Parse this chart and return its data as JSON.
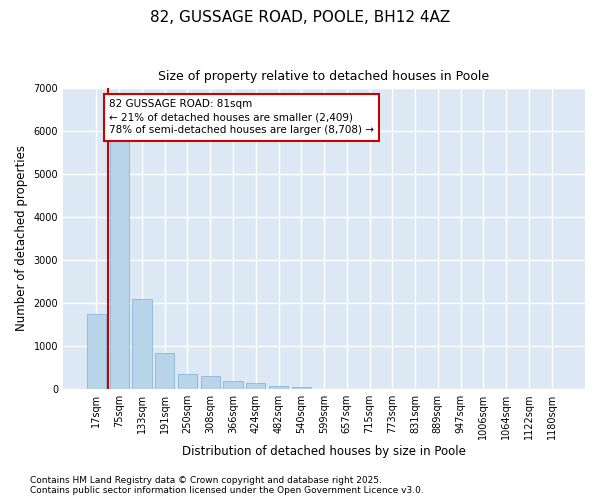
{
  "title1": "82, GUSSAGE ROAD, POOLE, BH12 4AZ",
  "title2": "Size of property relative to detached houses in Poole",
  "xlabel": "Distribution of detached houses by size in Poole",
  "ylabel": "Number of detached properties",
  "categories": [
    "17sqm",
    "75sqm",
    "133sqm",
    "191sqm",
    "250sqm",
    "308sqm",
    "366sqm",
    "424sqm",
    "482sqm",
    "540sqm",
    "599sqm",
    "657sqm",
    "715sqm",
    "773sqm",
    "831sqm",
    "889sqm",
    "947sqm",
    "1006sqm",
    "1064sqm",
    "1122sqm",
    "1180sqm"
  ],
  "values": [
    1750,
    5950,
    2100,
    830,
    350,
    290,
    170,
    120,
    55,
    30,
    0,
    0,
    0,
    0,
    0,
    0,
    0,
    0,
    0,
    0,
    0
  ],
  "bar_color": "#b8d4e8",
  "bar_edge_color": "#7bafd4",
  "background_color": "#dce9f5",
  "grid_color": "#ffffff",
  "fig_background": "#ffffff",
  "vline_x": 0.5,
  "vline_color": "#cc0000",
  "annotation_text": "82 GUSSAGE ROAD: 81sqm\n← 21% of detached houses are smaller (2,409)\n78% of semi-detached houses are larger (8,708) →",
  "annotation_box_color": "#cc0000",
  "ylim": [
    0,
    7000
  ],
  "yticks": [
    0,
    1000,
    2000,
    3000,
    4000,
    5000,
    6000,
    7000
  ],
  "footnote1": "Contains HM Land Registry data © Crown copyright and database right 2025.",
  "footnote2": "Contains public sector information licensed under the Open Government Licence v3.0.",
  "title_fontsize": 11,
  "subtitle_fontsize": 9,
  "axis_label_fontsize": 8.5,
  "tick_fontsize": 7,
  "annotation_fontsize": 7.5,
  "footnote_fontsize": 6.5
}
